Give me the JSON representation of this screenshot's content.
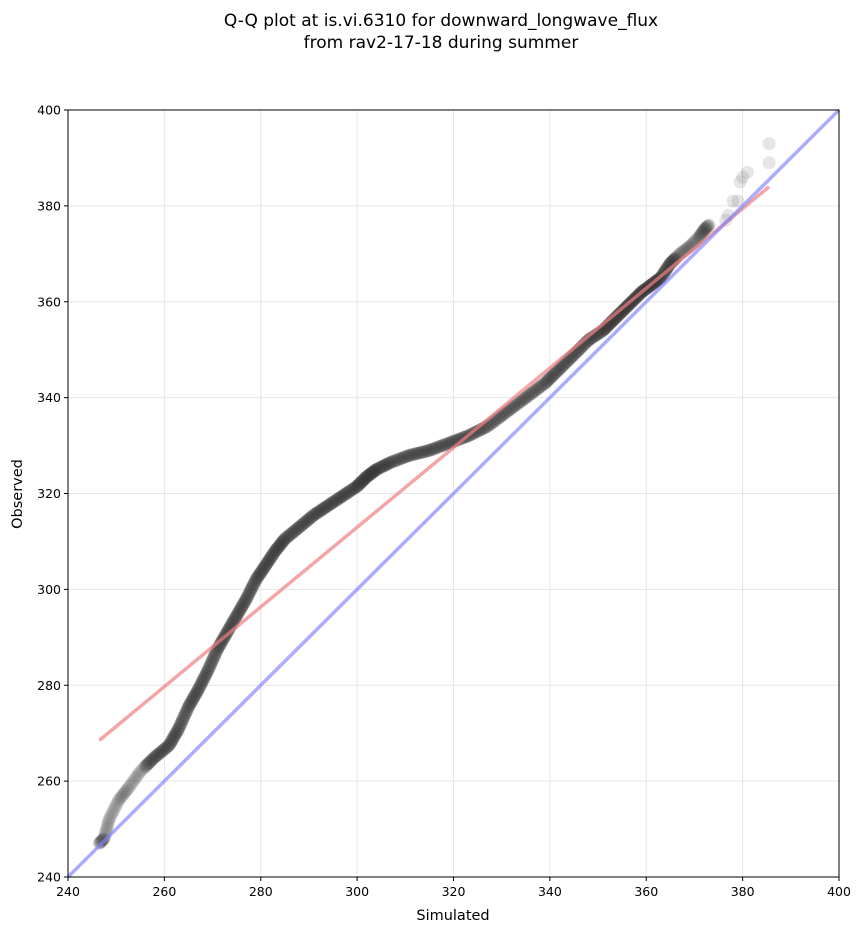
{
  "chart_data": {
    "type": "scatter",
    "title": "Q-Q plot at is.vi.6310 for downward_longwave_flux",
    "subtitle": "from rav2-17-18 during summer",
    "xlabel": "Simulated",
    "ylabel": "Observed",
    "xlim": [
      240,
      400
    ],
    "ylim": [
      240,
      400
    ],
    "xticks": [
      "240",
      "260",
      "280",
      "300",
      "320",
      "340",
      "360",
      "380",
      "400"
    ],
    "yticks": [
      "240",
      "260",
      "280",
      "300",
      "320",
      "340",
      "360",
      "380",
      "400"
    ],
    "grid": true,
    "colors": {
      "points": "#333333",
      "fit_line": "#f08080",
      "identity_line": "#8080ff"
    },
    "quantile_curve": [
      [
        246.5,
        247.0
      ],
      [
        247.5,
        248.0
      ],
      [
        248.5,
        252.0
      ],
      [
        250.5,
        256.0
      ],
      [
        252.5,
        258.5
      ],
      [
        255.0,
        262.0
      ],
      [
        258.0,
        265.0
      ],
      [
        261.0,
        267.5
      ],
      [
        263.0,
        271.0
      ],
      [
        265.0,
        275.5
      ],
      [
        267.0,
        279.0
      ],
      [
        269.0,
        283.0
      ],
      [
        271.0,
        287.5
      ],
      [
        273.0,
        291.0
      ],
      [
        275.0,
        294.5
      ],
      [
        277.0,
        298.0
      ],
      [
        279.0,
        302.0
      ],
      [
        281.0,
        305.0
      ],
      [
        283.0,
        308.0
      ],
      [
        285.0,
        310.5
      ],
      [
        288.0,
        313.0
      ],
      [
        291.0,
        315.5
      ],
      [
        294.0,
        317.5
      ],
      [
        297.0,
        319.5
      ],
      [
        300.0,
        321.5
      ],
      [
        302.0,
        323.5
      ],
      [
        304.0,
        325.0
      ],
      [
        307.0,
        326.5
      ],
      [
        311.0,
        328.0
      ],
      [
        315.0,
        329.0
      ],
      [
        319.0,
        330.5
      ],
      [
        323.0,
        332.0
      ],
      [
        327.0,
        334.0
      ],
      [
        331.0,
        337.0
      ],
      [
        335.0,
        340.0
      ],
      [
        339.0,
        343.0
      ],
      [
        342.0,
        346.0
      ],
      [
        345.0,
        349.0
      ],
      [
        348.0,
        352.0
      ],
      [
        351.0,
        354.0
      ],
      [
        353.0,
        356.0
      ],
      [
        355.0,
        358.0
      ],
      [
        357.0,
        360.0
      ],
      [
        359.0,
        362.0
      ],
      [
        361.0,
        363.5
      ],
      [
        363.0,
        365.0
      ],
      [
        365.0,
        368.0
      ],
      [
        367.0,
        370.0
      ],
      [
        369.0,
        371.5
      ],
      [
        371.0,
        373.5
      ],
      [
        372.0,
        375.0
      ],
      [
        373.0,
        376.0
      ]
    ],
    "tail_points": [
      [
        376.5,
        377.0
      ],
      [
        377.0,
        378.0
      ],
      [
        378.0,
        381.0
      ],
      [
        379.0,
        381.0
      ],
      [
        379.5,
        385.0
      ],
      [
        380.0,
        386.0
      ],
      [
        381.0,
        387.0
      ],
      [
        385.5,
        389.0
      ],
      [
        385.5,
        393.0
      ]
    ],
    "fit_line": [
      [
        246.5,
        268.5
      ],
      [
        385.5,
        384.0
      ]
    ],
    "identity_line": [
      [
        240,
        240
      ],
      [
        400,
        400
      ]
    ]
  }
}
